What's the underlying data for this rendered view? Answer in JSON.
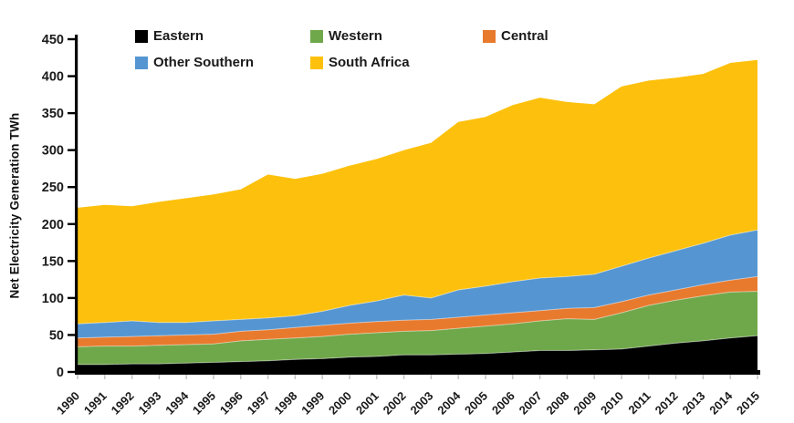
{
  "page": {
    "background": "#FFFFFF"
  },
  "axis": {
    "line_color": "#000000",
    "y_tick_color": "#000000",
    "x_tick_color": "#BFBFBF",
    "tick_label_color": "#1A1A1A"
  },
  "chart_data": {
    "type": "area",
    "stacked": true,
    "title": "",
    "xlabel": "",
    "ylabel": "Net Electricity Generation TWh",
    "ylim": [
      0,
      450
    ],
    "yticks": [
      0,
      50,
      100,
      150,
      200,
      250,
      300,
      350,
      400,
      450
    ],
    "grid": false,
    "legend_position": "top-left, two rows",
    "years": [
      1990,
      1991,
      1992,
      1993,
      1994,
      1995,
      1996,
      1997,
      1998,
      1999,
      2000,
      2001,
      2002,
      2003,
      2004,
      2005,
      2006,
      2007,
      2008,
      2009,
      2010,
      2011,
      2012,
      2013,
      2014,
      2015
    ],
    "series": [
      {
        "name": "Eastern",
        "color": "#000000",
        "values": [
          10,
          10,
          11,
          11,
          12,
          13,
          14,
          15,
          17,
          18,
          20,
          21,
          23,
          23,
          24,
          25,
          27,
          29,
          29,
          30,
          31,
          35,
          39,
          42,
          46,
          49
        ]
      },
      {
        "name": "Western",
        "color": "#6FA84B",
        "values": [
          24,
          25,
          24,
          25,
          25,
          25,
          28,
          29,
          29,
          30,
          31,
          32,
          32,
          33,
          35,
          37,
          38,
          40,
          43,
          41,
          49,
          55,
          58,
          61,
          62,
          60
        ]
      },
      {
        "name": "Central",
        "color": "#E87A2E",
        "values": [
          12,
          12,
          13,
          13,
          13,
          13,
          13,
          13,
          14,
          15,
          15,
          15,
          15,
          15,
          15,
          15,
          15,
          14,
          14,
          16,
          15,
          14,
          14,
          15,
          16,
          20
        ]
      },
      {
        "name": "Other Southern",
        "color": "#5596D2",
        "values": [
          19,
          20,
          21,
          18,
          17,
          18,
          16,
          16,
          16,
          19,
          24,
          28,
          34,
          29,
          37,
          39,
          42,
          44,
          43,
          45,
          48,
          50,
          53,
          56,
          61,
          63
        ]
      },
      {
        "name": "South Africa",
        "color": "#FDC10D",
        "values": [
          157,
          159,
          155,
          163,
          168,
          171,
          176,
          194,
          185,
          186,
          189,
          192,
          196,
          210,
          227,
          229,
          239,
          244,
          236,
          230,
          243,
          240,
          234,
          229,
          233,
          230
        ]
      }
    ]
  }
}
